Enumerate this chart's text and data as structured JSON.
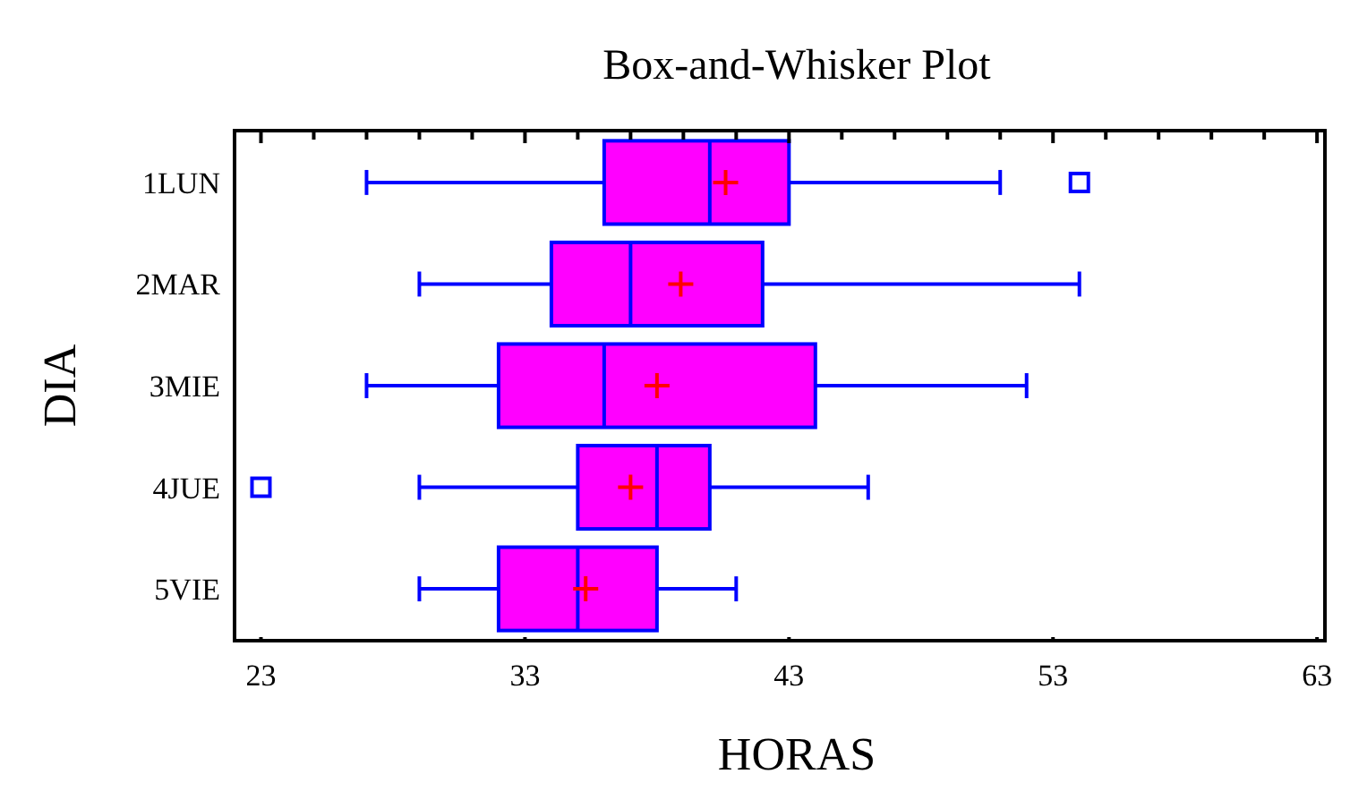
{
  "chart_data": {
    "type": "box",
    "orientation": "horizontal",
    "title": "Box-and-Whisker Plot",
    "xlabel": "HORAS",
    "ylabel": "DIA",
    "categories": [
      "1LUN",
      "2MAR",
      "3MIE",
      "4JUE",
      "5VIE"
    ],
    "series": [
      {
        "color": "#ff00ff",
        "boxes": [
          {
            "low": 27,
            "q1": 36,
            "median": 40,
            "q3": 43,
            "high": 51,
            "mean": 40.6,
            "outliers": [
              54
            ]
          },
          {
            "low": 29,
            "q1": 34,
            "median": 37,
            "q3": 42,
            "high": 54,
            "mean": 38.9
          },
          {
            "low": 27,
            "q1": 32,
            "median": 36,
            "q3": 44,
            "high": 52,
            "mean": 38
          },
          {
            "low": 29,
            "q1": 35,
            "median": 38,
            "q3": 40,
            "high": 46,
            "mean": 37,
            "outliers": [
              23
            ]
          },
          {
            "low": 29,
            "q1": 32,
            "median": 35,
            "q3": 38,
            "high": 41,
            "mean": 35.3
          }
        ]
      }
    ],
    "xlim": [
      22,
      63.3
    ],
    "xticks": [
      23,
      33,
      43,
      53,
      63
    ],
    "grid": false,
    "marker": "square"
  }
}
